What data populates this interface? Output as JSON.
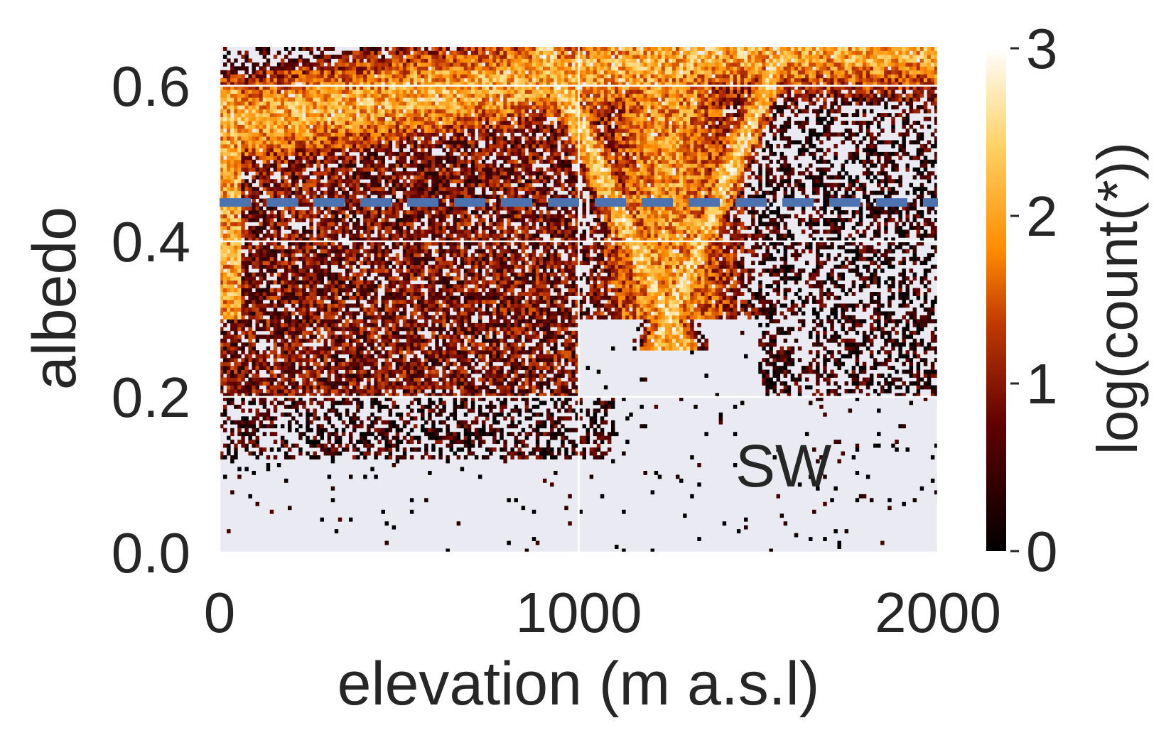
{
  "chart_data": {
    "type": "heatmap",
    "title": "",
    "xlabel": "elevation (m a.s.l)",
    "ylabel": "albedo",
    "xlim": [
      0,
      2000
    ],
    "ylim": [
      0,
      0.65
    ],
    "xticks": [
      0,
      1000,
      2000
    ],
    "yticks": [
      0.0,
      0.2,
      0.4,
      0.6
    ],
    "xtick_labels": [
      "0",
      "1000",
      "2000"
    ],
    "ytick_labels": [
      "0.0",
      "0.2",
      "0.4",
      "0.6"
    ],
    "grid": true,
    "colormap": "afmhot",
    "colorbar": {
      "label": "log(count(*))",
      "range": [
        0,
        3
      ],
      "ticks": [
        0,
        1,
        2,
        3
      ],
      "tick_labels": [
        "0",
        "1",
        "2",
        "3"
      ]
    },
    "reference_line": {
      "orientation": "horizontal",
      "y": 0.45,
      "style": "dashed",
      "color": "#4c72b0"
    },
    "annotation": {
      "text": "SW",
      "x": 1570,
      "y": 0.085
    },
    "density_features": [
      {
        "description": "upper ridge",
        "x_range": [
          0,
          1500
        ],
        "albedo_at_x0": 0.55,
        "albedo_at_x1500": 0.65
      },
      {
        "description": "V-shaped band",
        "vertex_elevation": 1250,
        "vertex_albedo": 0.3
      },
      {
        "description": "vertical stripe",
        "x": 20,
        "albedo_range": [
          0.3,
          0.6
        ]
      }
    ],
    "colors": {
      "plot_background": "#eaeaf2",
      "grid": "#ffffff",
      "text": "#262626"
    }
  }
}
